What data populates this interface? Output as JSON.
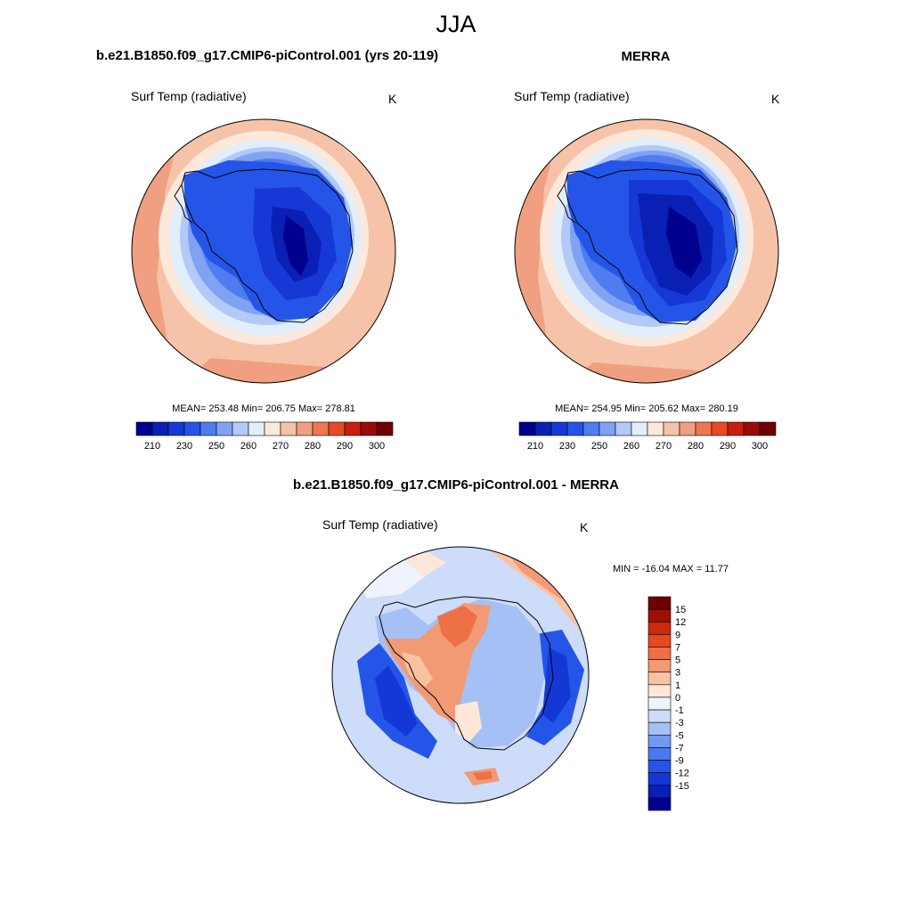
{
  "page": {
    "title": "JJA"
  },
  "panels": [
    {
      "title": "b.e21.B1850.f09_g17.CMIP6-piControl.001 (yrs 20-119)",
      "variable": "Surf Temp (radiative)",
      "units": "K",
      "stats": "MEAN= 253.48  Min= 206.75  Max= 278.81"
    },
    {
      "title": "MERRA",
      "variable": "Surf Temp (radiative)",
      "units": "K",
      "stats": "MEAN= 254.95  Min= 205.62  Max= 280.19"
    },
    {
      "title": "b.e21.B1850.f09_g17.CMIP6-piControl.001 - MERRA",
      "variable": "Surf Temp (radiative)",
      "units": "K",
      "stats": "MIN = -16.04 MAX =  11.77"
    }
  ],
  "abs_colorbar": {
    "colors": [
      "#00008f",
      "#0a1fb3",
      "#1638d6",
      "#2455e8",
      "#4f7df0",
      "#7fa2f2",
      "#b3c9f7",
      "#e3eefb",
      "#fde9db",
      "#f6c3a8",
      "#f09f80",
      "#ee7650",
      "#e84a26",
      "#c81e0e",
      "#9a0a06",
      "#6e0000"
    ],
    "labels": [
      "210",
      "230",
      "250",
      "260",
      "270",
      "280",
      "290",
      "300"
    ]
  },
  "diff_colorbar": {
    "colors": [
      "#00008f",
      "#0a1fb3",
      "#1438d6",
      "#2455e8",
      "#4a78ef",
      "#7298f0",
      "#a5c0f4",
      "#cddcf8",
      "#eef3fc",
      "#fde7d8",
      "#f8c3a2",
      "#f29a76",
      "#ee7046",
      "#e8481f",
      "#cc2a0c",
      "#9e1006",
      "#6e0000"
    ],
    "labels": [
      "15",
      "12",
      "9",
      "7",
      "5",
      "3",
      "1",
      "0",
      "-1",
      "-3",
      "-5",
      "-7",
      "-9",
      "-12",
      "-15"
    ]
  },
  "colors": {
    "continent_outline": "#000000",
    "map_border": "#000000"
  }
}
